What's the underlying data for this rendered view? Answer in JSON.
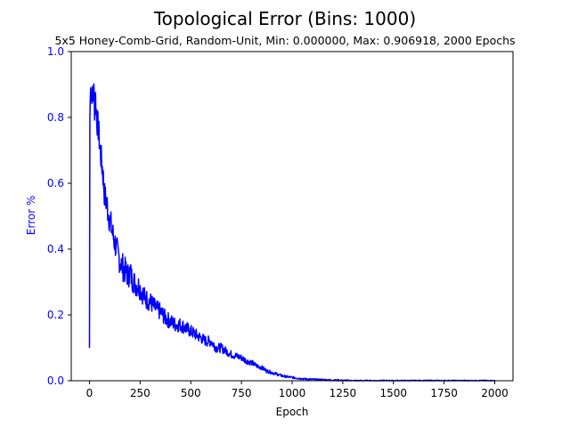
{
  "chart_data": {
    "type": "line",
    "title": "Topological Error (Bins: 1000)",
    "subtitle": "5x5 Honey-Comb-Grid, Random-Unit, Min: 0.000000, Max: 0.906918, 2000 Epochs",
    "xlabel": "Epoch",
    "ylabel": "Error %",
    "xlim": [
      -90,
      2090
    ],
    "ylim": [
      0,
      1.0
    ],
    "xticks": [
      "0",
      "250",
      "500",
      "750",
      "1000",
      "1250",
      "1500",
      "1750",
      "2000"
    ],
    "yticks": [
      "0.0",
      "0.2",
      "0.4",
      "0.6",
      "0.8",
      "1.0"
    ],
    "grid": false,
    "series": [
      {
        "color": "#0000ff",
        "x": [
          0,
          2,
          4,
          6,
          8,
          12,
          16,
          20,
          25,
          30,
          35,
          40,
          45,
          50,
          55,
          60,
          65,
          70,
          75,
          80,
          85,
          90,
          100,
          110,
          120,
          130,
          140,
          150,
          160,
          170,
          180,
          190,
          200,
          210,
          220,
          230,
          240,
          250,
          275,
          300,
          325,
          350,
          375,
          400,
          425,
          450,
          475,
          500,
          525,
          550,
          575,
          600,
          625,
          650,
          675,
          700,
          725,
          750,
          775,
          800,
          825,
          850,
          875,
          900,
          925,
          950,
          975,
          1000,
          1025,
          1050,
          1100,
          1150,
          1200,
          1250,
          1300,
          1400,
          1500,
          1600,
          1700,
          1800,
          1900,
          2000
        ],
        "values": [
          0.1,
          0.8,
          0.86,
          0.89,
          0.85,
          0.88,
          0.84,
          0.9,
          0.83,
          0.86,
          0.8,
          0.78,
          0.76,
          0.72,
          0.69,
          0.66,
          0.64,
          0.6,
          0.56,
          0.55,
          0.54,
          0.52,
          0.49,
          0.46,
          0.43,
          0.41,
          0.38,
          0.37,
          0.35,
          0.34,
          0.33,
          0.32,
          0.33,
          0.31,
          0.3,
          0.29,
          0.29,
          0.28,
          0.25,
          0.24,
          0.22,
          0.21,
          0.19,
          0.18,
          0.17,
          0.17,
          0.16,
          0.15,
          0.14,
          0.13,
          0.12,
          0.12,
          0.1,
          0.1,
          0.09,
          0.08,
          0.075,
          0.07,
          0.06,
          0.055,
          0.045,
          0.04,
          0.03,
          0.025,
          0.02,
          0.015,
          0.012,
          0.01,
          0.008,
          0.006,
          0.004,
          0.003,
          0.002,
          0.001,
          0.0,
          0.0,
          0.0,
          0.0,
          0.0,
          0.0,
          0.0,
          0.0
        ]
      }
    ]
  }
}
